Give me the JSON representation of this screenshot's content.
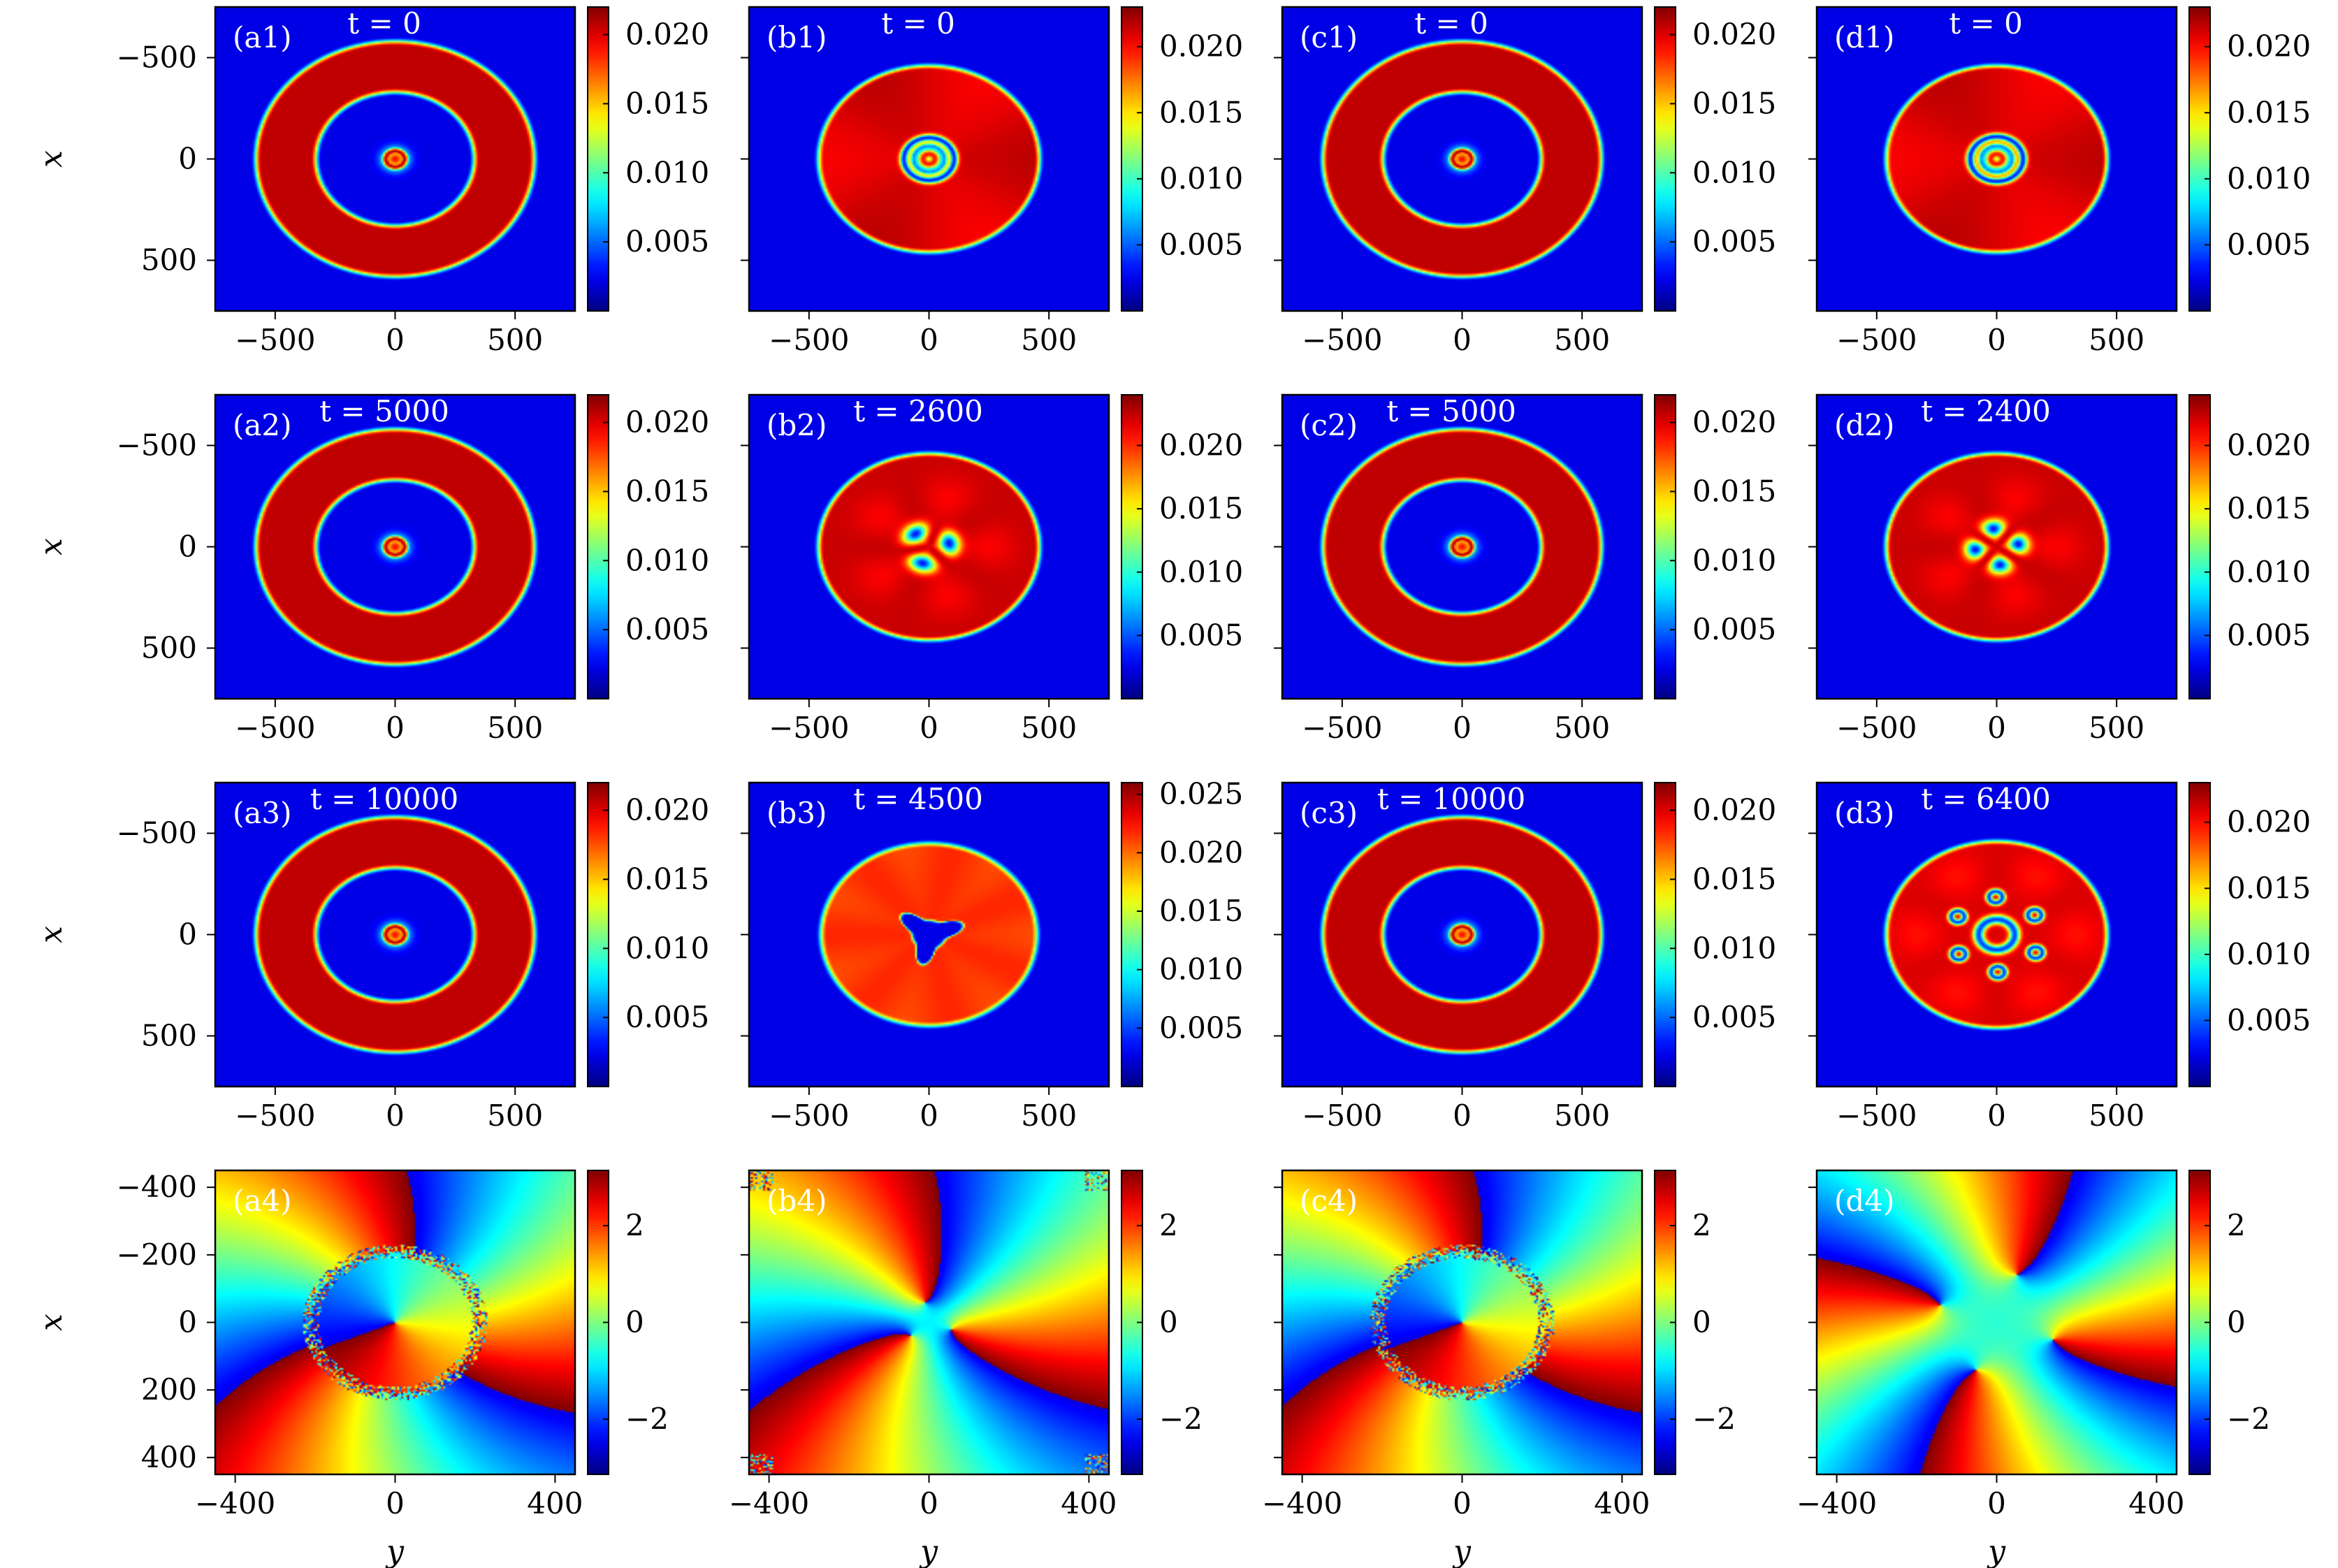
{
  "chart_data": {
    "type": "heatmap",
    "layout": "4 rows x 4 columns",
    "colormap": "jet",
    "x_axis_label": "y",
    "y_axis_label": "x",
    "panels": [
      {
        "id": "a1",
        "label": "(a1)",
        "time_label": "t = 0",
        "row": 1,
        "col": 1,
        "quantity": "density",
        "xlim": [
          -750,
          750
        ],
        "ylim": [
          750,
          -750
        ],
        "xticks": [
          -500,
          0,
          500
        ],
        "yticks": [
          -500,
          0,
          500
        ],
        "xtick_labels": [
          "−500",
          "0",
          "500"
        ],
        "ytick_labels": [
          "−500",
          "0",
          "500"
        ],
        "colorbar": {
          "min": 0,
          "max": 0.022,
          "ticks": [
            0.005,
            0.01,
            0.015,
            0.02
          ],
          "tick_labels": [
            "0.005",
            "0.010",
            "0.015",
            "0.020"
          ]
        },
        "pattern": {
          "outer_ring": [
            330,
            580
          ],
          "inner_core": 35,
          "bands": [],
          "style": "rings"
        }
      },
      {
        "id": "b1",
        "label": "(b1)",
        "time_label": "t = 0",
        "row": 1,
        "col": 2,
        "quantity": "density",
        "xlim": [
          -750,
          750
        ],
        "ylim": [
          750,
          -750
        ],
        "xticks": [
          -500,
          0,
          500
        ],
        "yticks": [
          -500,
          0,
          500
        ],
        "xtick_labels": [
          "−500",
          "0",
          "500"
        ],
        "ytick_labels": [
          "−500",
          "0",
          "500"
        ],
        "colorbar": {
          "min": 0,
          "max": 0.023,
          "ticks": [
            0.005,
            0.01,
            0.015,
            0.02
          ],
          "tick_labels": [
            "0.005",
            "0.010",
            "0.015",
            "0.020"
          ]
        },
        "pattern": {
          "outer_ring": [
            0,
            460
          ],
          "inner_core": 35,
          "bands": [
            70,
            100
          ],
          "style": "disk"
        }
      },
      {
        "id": "c1",
        "label": "(c1)",
        "time_label": "t = 0",
        "row": 1,
        "col": 3,
        "quantity": "density",
        "xlim": [
          -750,
          750
        ],
        "ylim": [
          750,
          -750
        ],
        "xticks": [
          -500,
          0,
          500
        ],
        "yticks": [
          -500,
          0,
          500
        ],
        "xtick_labels": [
          "−500",
          "0",
          "500"
        ],
        "ytick_labels": [
          "−500",
          "0",
          "500"
        ],
        "colorbar": {
          "min": 0,
          "max": 0.022,
          "ticks": [
            0.005,
            0.01,
            0.015,
            0.02
          ],
          "tick_labels": [
            "0.005",
            "0.010",
            "0.015",
            "0.020"
          ]
        },
        "pattern": {
          "outer_ring": [
            330,
            580
          ],
          "inner_core": 35,
          "bands": [],
          "style": "rings"
        }
      },
      {
        "id": "d1",
        "label": "(d1)",
        "time_label": "t = 0",
        "row": 1,
        "col": 4,
        "quantity": "density",
        "xlim": [
          -750,
          750
        ],
        "ylim": [
          750,
          -750
        ],
        "xticks": [
          -500,
          0,
          500
        ],
        "yticks": [
          -500,
          0,
          500
        ],
        "xtick_labels": [
          "−500",
          "0",
          "500"
        ],
        "ytick_labels": [
          "−500",
          "0",
          "500"
        ],
        "colorbar": {
          "min": 0,
          "max": 0.023,
          "ticks": [
            0.005,
            0.01,
            0.015,
            0.02
          ],
          "tick_labels": [
            "0.005",
            "0.010",
            "0.015",
            "0.020"
          ]
        },
        "pattern": {
          "outer_ring": [
            0,
            460
          ],
          "inner_core": 35,
          "bands": [
            70,
            105
          ],
          "style": "disk"
        }
      },
      {
        "id": "a2",
        "label": "(a2)",
        "time_label": "t = 5000",
        "row": 2,
        "col": 1,
        "quantity": "density",
        "xlim": [
          -750,
          750
        ],
        "ylim": [
          750,
          -750
        ],
        "xticks": [
          -500,
          0,
          500
        ],
        "yticks": [
          -500,
          0,
          500
        ],
        "xtick_labels": [
          "−500",
          "0",
          "500"
        ],
        "ytick_labels": [
          "−500",
          "0",
          "500"
        ],
        "colorbar": {
          "min": 0,
          "max": 0.022,
          "ticks": [
            0.005,
            0.01,
            0.015,
            0.02
          ],
          "tick_labels": [
            "0.005",
            "0.010",
            "0.015",
            "0.020"
          ]
        },
        "pattern": {
          "outer_ring": [
            330,
            580
          ],
          "inner_core": 35,
          "bands": [],
          "style": "rings"
        }
      },
      {
        "id": "b2",
        "label": "(b2)",
        "time_label": "t = 2600",
        "row": 2,
        "col": 2,
        "quantity": "density",
        "xlim": [
          -750,
          750
        ],
        "ylim": [
          750,
          -750
        ],
        "xticks": [
          -500,
          0,
          500
        ],
        "yticks": [
          -500,
          0,
          500
        ],
        "xtick_labels": [
          "−500",
          "0",
          "500"
        ],
        "ytick_labels": [
          "−500",
          "0",
          "500"
        ],
        "colorbar": {
          "min": 0,
          "max": 0.024,
          "ticks": [
            0.005,
            0.01,
            0.015,
            0.02
          ],
          "tick_labels": [
            "0.005",
            "0.010",
            "0.015",
            "0.020"
          ]
        },
        "pattern": {
          "outer_ring": [
            0,
            460
          ],
          "inner_core": 25,
          "bands": [],
          "style": "three-lobes"
        }
      },
      {
        "id": "c2",
        "label": "(c2)",
        "time_label": "t = 5000",
        "row": 2,
        "col": 3,
        "quantity": "density",
        "xlim": [
          -750,
          750
        ],
        "ylim": [
          750,
          -750
        ],
        "xticks": [
          -500,
          0,
          500
        ],
        "yticks": [
          -500,
          0,
          500
        ],
        "xtick_labels": [
          "−500",
          "0",
          "500"
        ],
        "ytick_labels": [
          "−500",
          "0",
          "500"
        ],
        "colorbar": {
          "min": 0,
          "max": 0.022,
          "ticks": [
            0.005,
            0.01,
            0.015,
            0.02
          ],
          "tick_labels": [
            "0.005",
            "0.010",
            "0.015",
            "0.020"
          ]
        },
        "pattern": {
          "outer_ring": [
            330,
            580
          ],
          "inner_core": 35,
          "bands": [],
          "style": "rings"
        }
      },
      {
        "id": "d2",
        "label": "(d2)",
        "time_label": "t = 2400",
        "row": 2,
        "col": 4,
        "quantity": "density",
        "xlim": [
          -750,
          750
        ],
        "ylim": [
          750,
          -750
        ],
        "xticks": [
          -500,
          0,
          500
        ],
        "yticks": [
          -500,
          0,
          500
        ],
        "xtick_labels": [
          "−500",
          "0",
          "500"
        ],
        "ytick_labels": [
          "−500",
          "0",
          "500"
        ],
        "colorbar": {
          "min": 0,
          "max": 0.024,
          "ticks": [
            0.005,
            0.01,
            0.015,
            0.02
          ],
          "tick_labels": [
            "0.005",
            "0.010",
            "0.015",
            "0.020"
          ]
        },
        "pattern": {
          "outer_ring": [
            0,
            460
          ],
          "inner_core": 40,
          "bands": [],
          "style": "four-lobes"
        }
      },
      {
        "id": "a3",
        "label": "(a3)",
        "time_label": "t = 10000",
        "row": 3,
        "col": 1,
        "quantity": "density",
        "xlim": [
          -750,
          750
        ],
        "ylim": [
          750,
          -750
        ],
        "xticks": [
          -500,
          0,
          500
        ],
        "yticks": [
          -500,
          0,
          500
        ],
        "xtick_labels": [
          "−500",
          "0",
          "500"
        ],
        "ytick_labels": [
          "−500",
          "0",
          "500"
        ],
        "colorbar": {
          "min": 0,
          "max": 0.022,
          "ticks": [
            0.005,
            0.01,
            0.015,
            0.02
          ],
          "tick_labels": [
            "0.005",
            "0.010",
            "0.015",
            "0.020"
          ]
        },
        "pattern": {
          "outer_ring": [
            330,
            580
          ],
          "inner_core": 35,
          "bands": [],
          "style": "rings"
        }
      },
      {
        "id": "b3",
        "label": "(b3)",
        "time_label": "t = 4500",
        "row": 3,
        "col": 2,
        "quantity": "density",
        "xlim": [
          -750,
          750
        ],
        "ylim": [
          750,
          -750
        ],
        "xticks": [
          -500,
          0,
          500
        ],
        "yticks": [
          -500,
          0,
          500
        ],
        "xtick_labels": [
          "−500",
          "0",
          "500"
        ],
        "ytick_labels": [
          "−500",
          "0",
          "500"
        ],
        "colorbar": {
          "min": 0,
          "max": 0.026,
          "ticks": [
            0.005,
            0.01,
            0.015,
            0.02,
            0.025
          ],
          "tick_labels": [
            "0.005",
            "0.010",
            "0.015",
            "0.020",
            "0.025"
          ]
        },
        "pattern": {
          "outer_ring": [
            0,
            450
          ],
          "inner_core": 0,
          "bands": [],
          "style": "three-arm-hole"
        }
      },
      {
        "id": "c3",
        "label": "(c3)",
        "time_label": "t = 10000",
        "row": 3,
        "col": 3,
        "quantity": "density",
        "xlim": [
          -750,
          750
        ],
        "ylim": [
          750,
          -750
        ],
        "xticks": [
          -500,
          0,
          500
        ],
        "yticks": [
          -500,
          0,
          500
        ],
        "xtick_labels": [
          "−500",
          "0",
          "500"
        ],
        "ytick_labels": [
          "−500",
          "0",
          "500"
        ],
        "colorbar": {
          "min": 0,
          "max": 0.022,
          "ticks": [
            0.005,
            0.01,
            0.015,
            0.02
          ],
          "tick_labels": [
            "0.005",
            "0.010",
            "0.015",
            "0.020"
          ]
        },
        "pattern": {
          "outer_ring": [
            330,
            580
          ],
          "inner_core": 35,
          "bands": [],
          "style": "rings"
        }
      },
      {
        "id": "d3",
        "label": "(d3)",
        "time_label": "t = 6400",
        "row": 3,
        "col": 4,
        "quantity": "density",
        "xlim": [
          -750,
          750
        ],
        "ylim": [
          750,
          -750
        ],
        "xticks": [
          -500,
          0,
          500
        ],
        "yticks": [
          -500,
          0,
          500
        ],
        "xtick_labels": [
          "−500",
          "0",
          "500"
        ],
        "ytick_labels": [
          "−500",
          "0",
          "500"
        ],
        "colorbar": {
          "min": 0,
          "max": 0.023,
          "ticks": [
            0.005,
            0.01,
            0.015,
            0.02
          ],
          "tick_labels": [
            "0.005",
            "0.010",
            "0.015",
            "0.020"
          ]
        },
        "pattern": {
          "outer_ring": [
            0,
            460
          ],
          "inner_core": 0,
          "bands": [],
          "style": "six-vortices"
        }
      },
      {
        "id": "a4",
        "label": "(a4)",
        "row": 4,
        "col": 1,
        "quantity": "phase",
        "xlim": [
          -450,
          450
        ],
        "ylim": [
          450,
          -450
        ],
        "xticks": [
          -400,
          0,
          400
        ],
        "yticks": [
          -400,
          -200,
          0,
          200,
          400
        ],
        "xtick_labels": [
          "−400",
          "0",
          "400"
        ],
        "ytick_labels": [
          "−400",
          "−200",
          "0",
          "200",
          "400"
        ],
        "colorbar": {
          "min": -3.14,
          "max": 3.14,
          "ticks": [
            -2,
            0,
            2
          ],
          "tick_labels": [
            "−2",
            "0",
            "2"
          ]
        },
        "pattern": {
          "winding_outer": 3,
          "winding_inner": 1,
          "noise_ring_radius": 210,
          "style": "phase-ring"
        }
      },
      {
        "id": "b4",
        "label": "(b4)",
        "row": 4,
        "col": 2,
        "quantity": "phase",
        "xlim": [
          -450,
          450
        ],
        "ylim": [
          450,
          -450
        ],
        "xticks": [
          -400,
          0,
          400
        ],
        "yticks": [
          -400,
          -200,
          0,
          200,
          400
        ],
        "xtick_labels": [
          "−400",
          "0",
          "400"
        ],
        "ytick_labels": [
          "−400",
          "−200",
          "0",
          "200",
          "400"
        ],
        "colorbar": {
          "min": -3.14,
          "max": 3.14,
          "ticks": [
            -2,
            0,
            2
          ],
          "tick_labels": [
            "−2",
            "0",
            "2"
          ]
        },
        "pattern": {
          "winding_outer": 3,
          "vortex_ring_radius": 60,
          "vortex_count": 3,
          "style": "phase-vortices"
        }
      },
      {
        "id": "c4",
        "label": "(c4)",
        "row": 4,
        "col": 3,
        "quantity": "phase",
        "xlim": [
          -450,
          450
        ],
        "ylim": [
          450,
          -450
        ],
        "xticks": [
          -400,
          0,
          400
        ],
        "yticks": [
          -400,
          -200,
          0,
          200,
          400
        ],
        "xtick_labels": [
          "−400",
          "0",
          "400"
        ],
        "ytick_labels": [
          "−400",
          "−200",
          "0",
          "200",
          "400"
        ],
        "colorbar": {
          "min": -3.14,
          "max": 3.14,
          "ticks": [
            -2,
            0,
            2
          ],
          "tick_labels": [
            "−2",
            "0",
            "2"
          ]
        },
        "pattern": {
          "winding_outer": 3,
          "winding_inner": 1,
          "noise_ring_radius": 210,
          "style": "phase-ring"
        }
      },
      {
        "id": "d4",
        "label": "(d4)",
        "row": 4,
        "col": 4,
        "quantity": "phase",
        "xlim": [
          -450,
          450
        ],
        "ylim": [
          450,
          -450
        ],
        "xticks": [
          -400,
          0,
          400
        ],
        "yticks": [
          -400,
          -200,
          0,
          200,
          400
        ],
        "xtick_labels": [
          "−400",
          "0",
          "400"
        ],
        "ytick_labels": [
          "−400",
          "−200",
          "0",
          "200",
          "400"
        ],
        "colorbar": {
          "min": -3.14,
          "max": 3.14,
          "ticks": [
            -2,
            0,
            2
          ],
          "tick_labels": [
            "−2",
            "0",
            "2"
          ]
        },
        "pattern": {
          "winding_outer": 4,
          "vortex_ring_radius": 150,
          "vortex_count": 4,
          "style": "phase-vortices"
        }
      }
    ]
  }
}
